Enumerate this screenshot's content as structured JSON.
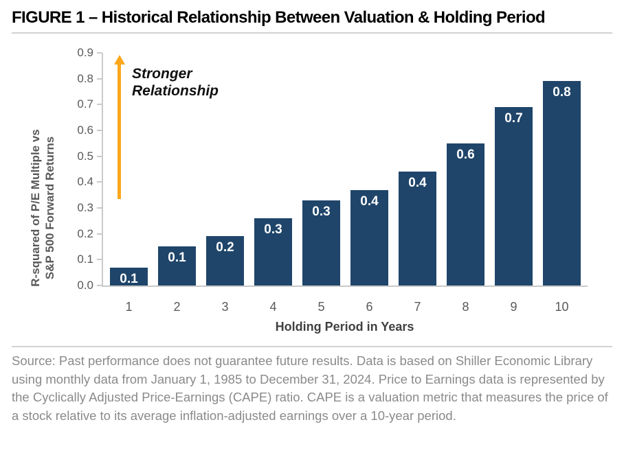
{
  "figure": {
    "title": "FIGURE 1 – Historical Relationship Between Valuation & Holding Period"
  },
  "chart_data": {
    "type": "bar",
    "title": "FIGURE 1 – Historical Relationship Between Valuation & Holding Period",
    "xlabel": "Holding Period in Years",
    "ylabel": "R-squared of P/E Multiple vs S&P 500 Forward Returns",
    "ylabel_lines": [
      "R-squared of P/E Multiple vs",
      "S&P 500 Forward Returns"
    ],
    "categories": [
      "1",
      "2",
      "3",
      "4",
      "5",
      "6",
      "7",
      "8",
      "9",
      "10"
    ],
    "values": [
      0.07,
      0.15,
      0.19,
      0.26,
      0.33,
      0.37,
      0.44,
      0.55,
      0.69,
      0.79
    ],
    "bar_labels": [
      "0.1",
      "0.1",
      "0.2",
      "0.3",
      "0.3",
      "0.4",
      "0.4",
      "0.6",
      "0.7",
      "0.8"
    ],
    "ylim": [
      0,
      0.9
    ],
    "ytick_labels": [
      "0.0",
      "0.1",
      "0.2",
      "0.3",
      "0.4",
      "0.5",
      "0.6",
      "0.7",
      "0.8",
      "0.9"
    ],
    "grid": false,
    "legend": "none",
    "annotation": {
      "line1": "Stronger",
      "line2": "Relationship"
    },
    "colors": {
      "bar": "#1F456A",
      "arrow": "#FAA71B",
      "bar_label": "#FFFFFF",
      "axis_text": "#595959",
      "axis_line": "#C9C9C9"
    }
  },
  "footer": {
    "source_text": "Source: Past performance does not guarantee future results. Data is based on Shiller Economic Library using monthly data from January 1, 1985 to December 31, 2024. Price to Earnings data is represented by the Cyclically Adjusted Price-Earnings (CAPE) ratio. CAPE is a valuation metric that measures the price of a stock relative to its average inflation-adjusted earnings over a 10-year period."
  }
}
